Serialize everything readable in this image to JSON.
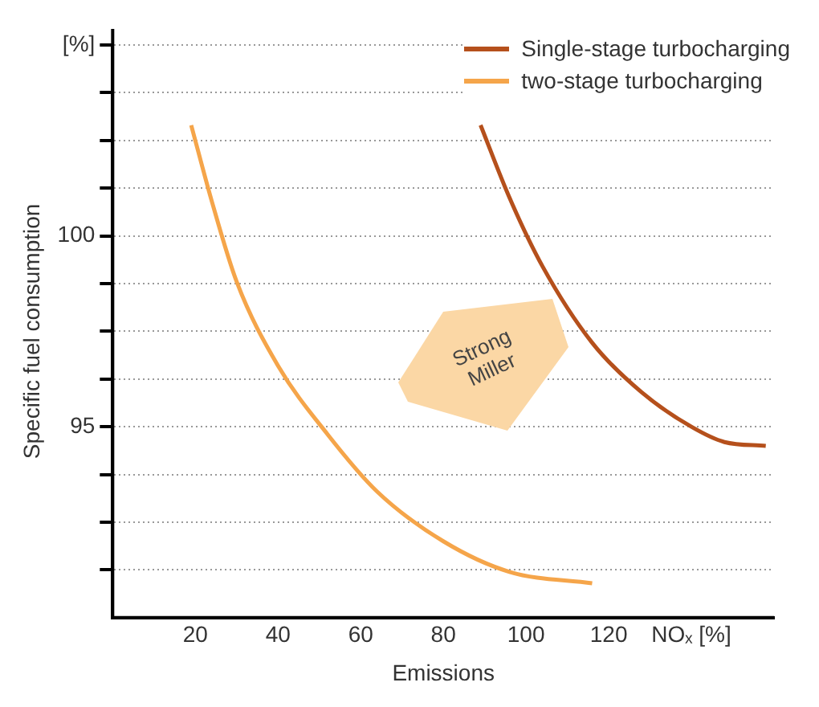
{
  "chart_data": {
    "type": "line",
    "xlabel": "Emissions",
    "ylabel": "Specific fuel consumption",
    "xlim": [
      0,
      160
    ],
    "xticks": [
      20,
      40,
      60,
      80,
      100,
      120,
      {
        "value": 140,
        "label": "NOₓ [%]"
      }
    ],
    "ylim": [
      90,
      105
    ],
    "yticks": [
      {
        "value": 91.25,
        "label": null
      },
      {
        "value": 92.5,
        "label": null
      },
      {
        "value": 93.75,
        "label": null
      },
      95,
      {
        "value": 96.25,
        "label": null
      },
      {
        "value": 97.5,
        "label": null
      },
      {
        "value": 98.75,
        "label": null
      },
      100,
      {
        "value": 101.25,
        "label": null
      },
      {
        "value": 102.5,
        "label": null
      },
      {
        "value": 103.75,
        "label": null
      },
      {
        "value": 105,
        "label": "[%]"
      }
    ],
    "grid": "y",
    "legend": "top right",
    "marker": "none",
    "line_style": "solid",
    "annotations": [
      "Strong Miller"
    ],
    "series": [
      {
        "name": "Single-stage turbocharging",
        "color": "#b5501c",
        "x": [
          89,
          96,
          104,
          116,
          128,
          140,
          148,
          158
        ],
        "values": [
          102.9,
          101.0,
          99.2,
          97.2,
          95.9,
          95.0,
          94.6,
          94.5
        ]
      },
      {
        "name": "two-stage turbocharging",
        "color": "#f5a54a",
        "x": [
          19,
          24,
          30,
          40,
          52,
          64,
          80,
          96,
          116
        ],
        "values": [
          102.9,
          100.9,
          98.8,
          96.6,
          94.8,
          93.3,
          92.0,
          91.2,
          90.9
        ]
      }
    ]
  }
}
